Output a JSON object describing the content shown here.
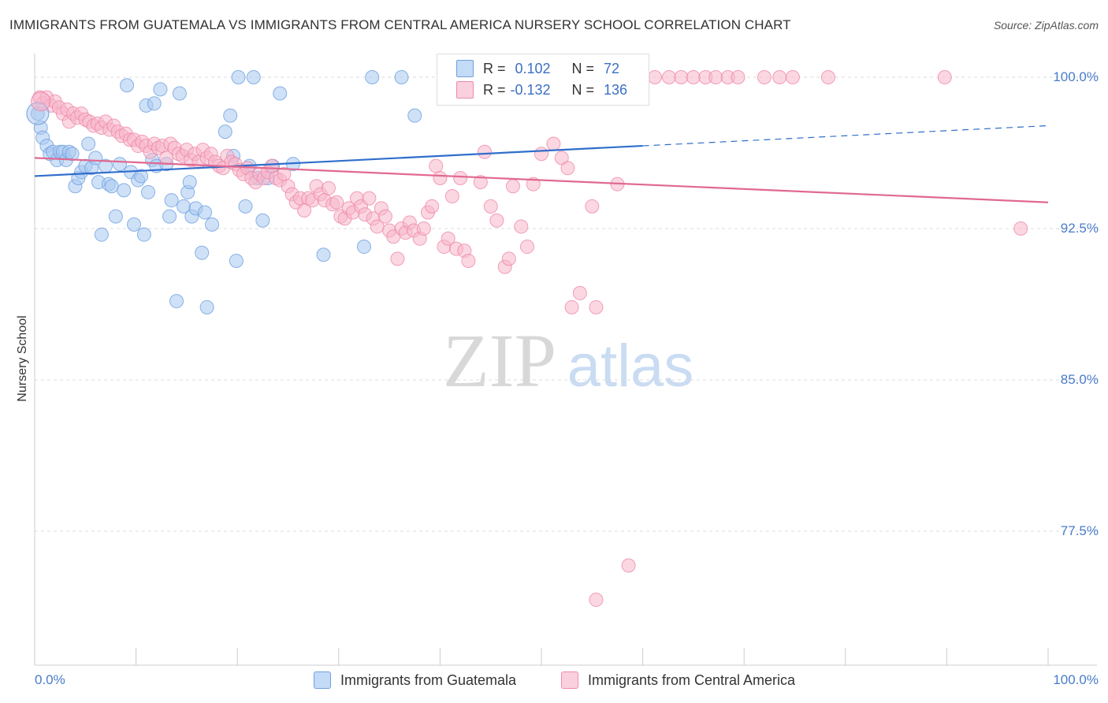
{
  "title": "IMMIGRANTS FROM GUATEMALA VS IMMIGRANTS FROM CENTRAL AMERICA NURSERY SCHOOL CORRELATION CHART",
  "source": "Source: ZipAtlas.com",
  "watermark": {
    "zip": "ZIP",
    "atlas": "atlas"
  },
  "legend": {
    "r_label": "R =",
    "n_label": "N =",
    "rows": [
      {
        "r": "0.102",
        "n": "72",
        "color": "#a8c8f0"
      },
      {
        "r": "-0.132",
        "n": "136",
        "color": "#f7b6cb"
      }
    ]
  },
  "bottom_legend": [
    {
      "label": "Immigrants from Guatemala",
      "color": "#a8c8f0"
    },
    {
      "label": "Immigrants from Central America",
      "color": "#f7b6cb"
    }
  ],
  "chart_data": {
    "type": "scatter",
    "ylabel": "Nursery School",
    "xlim": [
      0,
      100
    ],
    "ylim": [
      70,
      100.8
    ],
    "x_tick_labels": [
      "0.0%",
      "100.0%"
    ],
    "y_ticks": [
      {
        "value": 100.0,
        "label": "100.0%"
      },
      {
        "value": 92.5,
        "label": "92.5%"
      },
      {
        "value": 85.0,
        "label": "85.0%"
      },
      {
        "value": 77.5,
        "label": "77.5%"
      }
    ],
    "grid": true,
    "series": [
      {
        "name": "Immigrants from Guatemala",
        "color": "#6fa0e0",
        "fill": "#a8c8f0",
        "trend": {
          "x0": 0,
          "y0": 95.1,
          "x1": 60,
          "y1": 96.6,
          "dash_to_x": 100,
          "dash_to_y": 97.6
        },
        "points": [
          [
            0.3,
            98.2
          ],
          [
            0.6,
            97.5
          ],
          [
            0.8,
            97.0
          ],
          [
            1.2,
            96.6
          ],
          [
            1.5,
            96.2
          ],
          [
            1.8,
            96.3
          ],
          [
            2.2,
            95.9
          ],
          [
            2.5,
            96.3
          ],
          [
            2.8,
            96.3
          ],
          [
            3.1,
            95.9
          ],
          [
            3.4,
            96.3
          ],
          [
            3.7,
            96.2
          ],
          [
            4.0,
            94.6
          ],
          [
            4.3,
            95.0
          ],
          [
            4.6,
            95.3
          ],
          [
            5.0,
            95.6
          ],
          [
            5.3,
            96.7
          ],
          [
            5.6,
            95.5
          ],
          [
            6.0,
            96.0
          ],
          [
            6.3,
            94.8
          ],
          [
            6.6,
            92.2
          ],
          [
            7.0,
            95.6
          ],
          [
            7.3,
            94.7
          ],
          [
            7.6,
            94.6
          ],
          [
            8.0,
            93.1
          ],
          [
            8.4,
            95.7
          ],
          [
            8.8,
            94.4
          ],
          [
            9.1,
            99.6
          ],
          [
            9.5,
            95.3
          ],
          [
            9.8,
            92.7
          ],
          [
            10.2,
            94.9
          ],
          [
            10.5,
            95.1
          ],
          [
            10.8,
            92.2
          ],
          [
            11.2,
            94.3
          ],
          [
            11.0,
            98.6
          ],
          [
            11.6,
            95.9
          ],
          [
            11.8,
            98.7
          ],
          [
            12.0,
            95.6
          ],
          [
            12.4,
            99.4
          ],
          [
            13.0,
            95.7
          ],
          [
            13.3,
            93.1
          ],
          [
            13.5,
            93.9
          ],
          [
            14.0,
            88.9
          ],
          [
            14.3,
            99.2
          ],
          [
            14.7,
            93.6
          ],
          [
            15.1,
            94.3
          ],
          [
            15.3,
            94.8
          ],
          [
            15.5,
            93.1
          ],
          [
            15.9,
            93.5
          ],
          [
            16.8,
            93.3
          ],
          [
            16.5,
            91.3
          ],
          [
            17.0,
            88.6
          ],
          [
            17.5,
            92.7
          ],
          [
            18.8,
            97.3
          ],
          [
            19.3,
            98.1
          ],
          [
            19.6,
            96.1
          ],
          [
            19.9,
            90.9
          ],
          [
            20.1,
            100.0
          ],
          [
            20.8,
            93.6
          ],
          [
            21.2,
            95.6
          ],
          [
            21.6,
            100.0
          ],
          [
            22.0,
            95.0
          ],
          [
            22.5,
            92.9
          ],
          [
            23.0,
            95.0
          ],
          [
            23.5,
            95.6
          ],
          [
            24.2,
            99.2
          ],
          [
            25.5,
            95.7
          ],
          [
            28.5,
            91.2
          ],
          [
            32.5,
            91.6
          ],
          [
            33.3,
            100.0
          ],
          [
            36.2,
            100.0
          ],
          [
            37.5,
            98.1
          ],
          [
            60.0,
            100.0
          ]
        ]
      },
      {
        "name": "Immigrants from Central America",
        "color": "#ee8aaa",
        "fill": "#f7b6cb",
        "trend": {
          "x0": 0,
          "y0": 96.0,
          "x1": 100,
          "y1": 93.8
        },
        "points": [
          [
            0.5,
            99.0
          ],
          [
            0.8,
            98.7
          ],
          [
            1.2,
            99.0
          ],
          [
            1.6,
            98.6
          ],
          [
            2.0,
            98.8
          ],
          [
            2.4,
            98.5
          ],
          [
            2.8,
            98.2
          ],
          [
            3.2,
            98.4
          ],
          [
            3.4,
            97.8
          ],
          [
            3.8,
            98.2
          ],
          [
            4.2,
            98.0
          ],
          [
            4.6,
            98.2
          ],
          [
            5.0,
            97.9
          ],
          [
            5.4,
            97.8
          ],
          [
            5.8,
            97.6
          ],
          [
            6.2,
            97.7
          ],
          [
            6.6,
            97.5
          ],
          [
            7.0,
            97.8
          ],
          [
            7.4,
            97.4
          ],
          [
            7.8,
            97.6
          ],
          [
            8.2,
            97.3
          ],
          [
            8.6,
            97.1
          ],
          [
            9.0,
            97.2
          ],
          [
            9.4,
            96.9
          ],
          [
            9.8,
            96.9
          ],
          [
            10.2,
            96.6
          ],
          [
            10.6,
            96.8
          ],
          [
            11.0,
            96.6
          ],
          [
            11.4,
            96.3
          ],
          [
            11.8,
            96.7
          ],
          [
            12.2,
            96.5
          ],
          [
            12.6,
            96.6
          ],
          [
            13.0,
            96.0
          ],
          [
            13.4,
            96.7
          ],
          [
            13.8,
            96.5
          ],
          [
            14.2,
            96.2
          ],
          [
            14.6,
            96.1
          ],
          [
            15.0,
            96.4
          ],
          [
            15.4,
            95.9
          ],
          [
            15.8,
            96.2
          ],
          [
            16.2,
            95.8
          ],
          [
            16.6,
            96.4
          ],
          [
            17.0,
            96.0
          ],
          [
            17.4,
            96.2
          ],
          [
            17.8,
            95.8
          ],
          [
            18.2,
            95.6
          ],
          [
            18.6,
            95.5
          ],
          [
            19.0,
            96.1
          ],
          [
            19.4,
            95.8
          ],
          [
            19.8,
            95.7
          ],
          [
            20.2,
            95.4
          ],
          [
            20.6,
            95.2
          ],
          [
            21.0,
            95.5
          ],
          [
            21.4,
            95.0
          ],
          [
            21.8,
            94.8
          ],
          [
            22.2,
            95.2
          ],
          [
            22.6,
            95.0
          ],
          [
            23.0,
            95.3
          ],
          [
            23.4,
            95.6
          ],
          [
            23.8,
            95.0
          ],
          [
            24.2,
            94.9
          ],
          [
            24.6,
            95.2
          ],
          [
            25.0,
            94.6
          ],
          [
            25.4,
            94.2
          ],
          [
            25.8,
            93.8
          ],
          [
            26.2,
            94.0
          ],
          [
            26.6,
            93.4
          ],
          [
            27.0,
            94.0
          ],
          [
            27.4,
            93.9
          ],
          [
            27.8,
            94.6
          ],
          [
            28.2,
            94.2
          ],
          [
            28.6,
            93.9
          ],
          [
            29.0,
            94.5
          ],
          [
            29.4,
            93.7
          ],
          [
            29.8,
            93.8
          ],
          [
            30.2,
            93.1
          ],
          [
            30.6,
            93.0
          ],
          [
            31.0,
            93.5
          ],
          [
            31.4,
            93.3
          ],
          [
            31.8,
            94.0
          ],
          [
            32.2,
            93.6
          ],
          [
            32.6,
            93.2
          ],
          [
            33.0,
            94.0
          ],
          [
            33.4,
            93.0
          ],
          [
            33.8,
            92.6
          ],
          [
            34.2,
            93.5
          ],
          [
            34.6,
            93.1
          ],
          [
            35.0,
            92.4
          ],
          [
            35.4,
            92.1
          ],
          [
            35.8,
            91.0
          ],
          [
            36.2,
            92.5
          ],
          [
            36.6,
            92.3
          ],
          [
            37.0,
            92.8
          ],
          [
            37.4,
            92.4
          ],
          [
            38.0,
            92.0
          ],
          [
            38.4,
            92.5
          ],
          [
            38.8,
            93.3
          ],
          [
            39.2,
            93.6
          ],
          [
            39.6,
            95.6
          ],
          [
            40.0,
            95.0
          ],
          [
            40.4,
            91.6
          ],
          [
            40.8,
            92.0
          ],
          [
            41.2,
            94.1
          ],
          [
            41.6,
            91.5
          ],
          [
            42.0,
            95.0
          ],
          [
            42.4,
            91.4
          ],
          [
            42.8,
            90.9
          ],
          [
            43.6,
            100.0
          ],
          [
            44.0,
            94.8
          ],
          [
            44.4,
            96.3
          ],
          [
            45.0,
            93.6
          ],
          [
            45.6,
            92.9
          ],
          [
            46.4,
            90.6
          ],
          [
            46.8,
            91.0
          ],
          [
            47.2,
            94.6
          ],
          [
            48.0,
            92.6
          ],
          [
            48.6,
            91.6
          ],
          [
            49.2,
            94.7
          ],
          [
            50.0,
            96.2
          ],
          [
            50.4,
            100.0
          ],
          [
            51.2,
            96.7
          ],
          [
            52.0,
            96.0
          ],
          [
            52.6,
            95.5
          ],
          [
            53.0,
            88.6
          ],
          [
            53.8,
            89.3
          ],
          [
            54.4,
            100.0
          ],
          [
            55.0,
            93.6
          ],
          [
            55.4,
            88.6
          ],
          [
            57.5,
            94.7
          ],
          [
            58.8,
            100.0
          ],
          [
            61.2,
            100.0
          ],
          [
            62.6,
            100.0
          ],
          [
            63.8,
            100.0
          ],
          [
            65.0,
            100.0
          ],
          [
            66.2,
            100.0
          ],
          [
            67.2,
            100.0
          ],
          [
            68.4,
            100.0
          ],
          [
            69.4,
            100.0
          ],
          [
            72.0,
            100.0
          ],
          [
            73.5,
            100.0
          ],
          [
            74.8,
            100.0
          ],
          [
            78.3,
            100.0
          ],
          [
            89.8,
            100.0
          ],
          [
            97.3,
            92.5
          ],
          [
            58.6,
            75.8
          ],
          [
            55.4,
            74.1
          ]
        ]
      }
    ]
  }
}
